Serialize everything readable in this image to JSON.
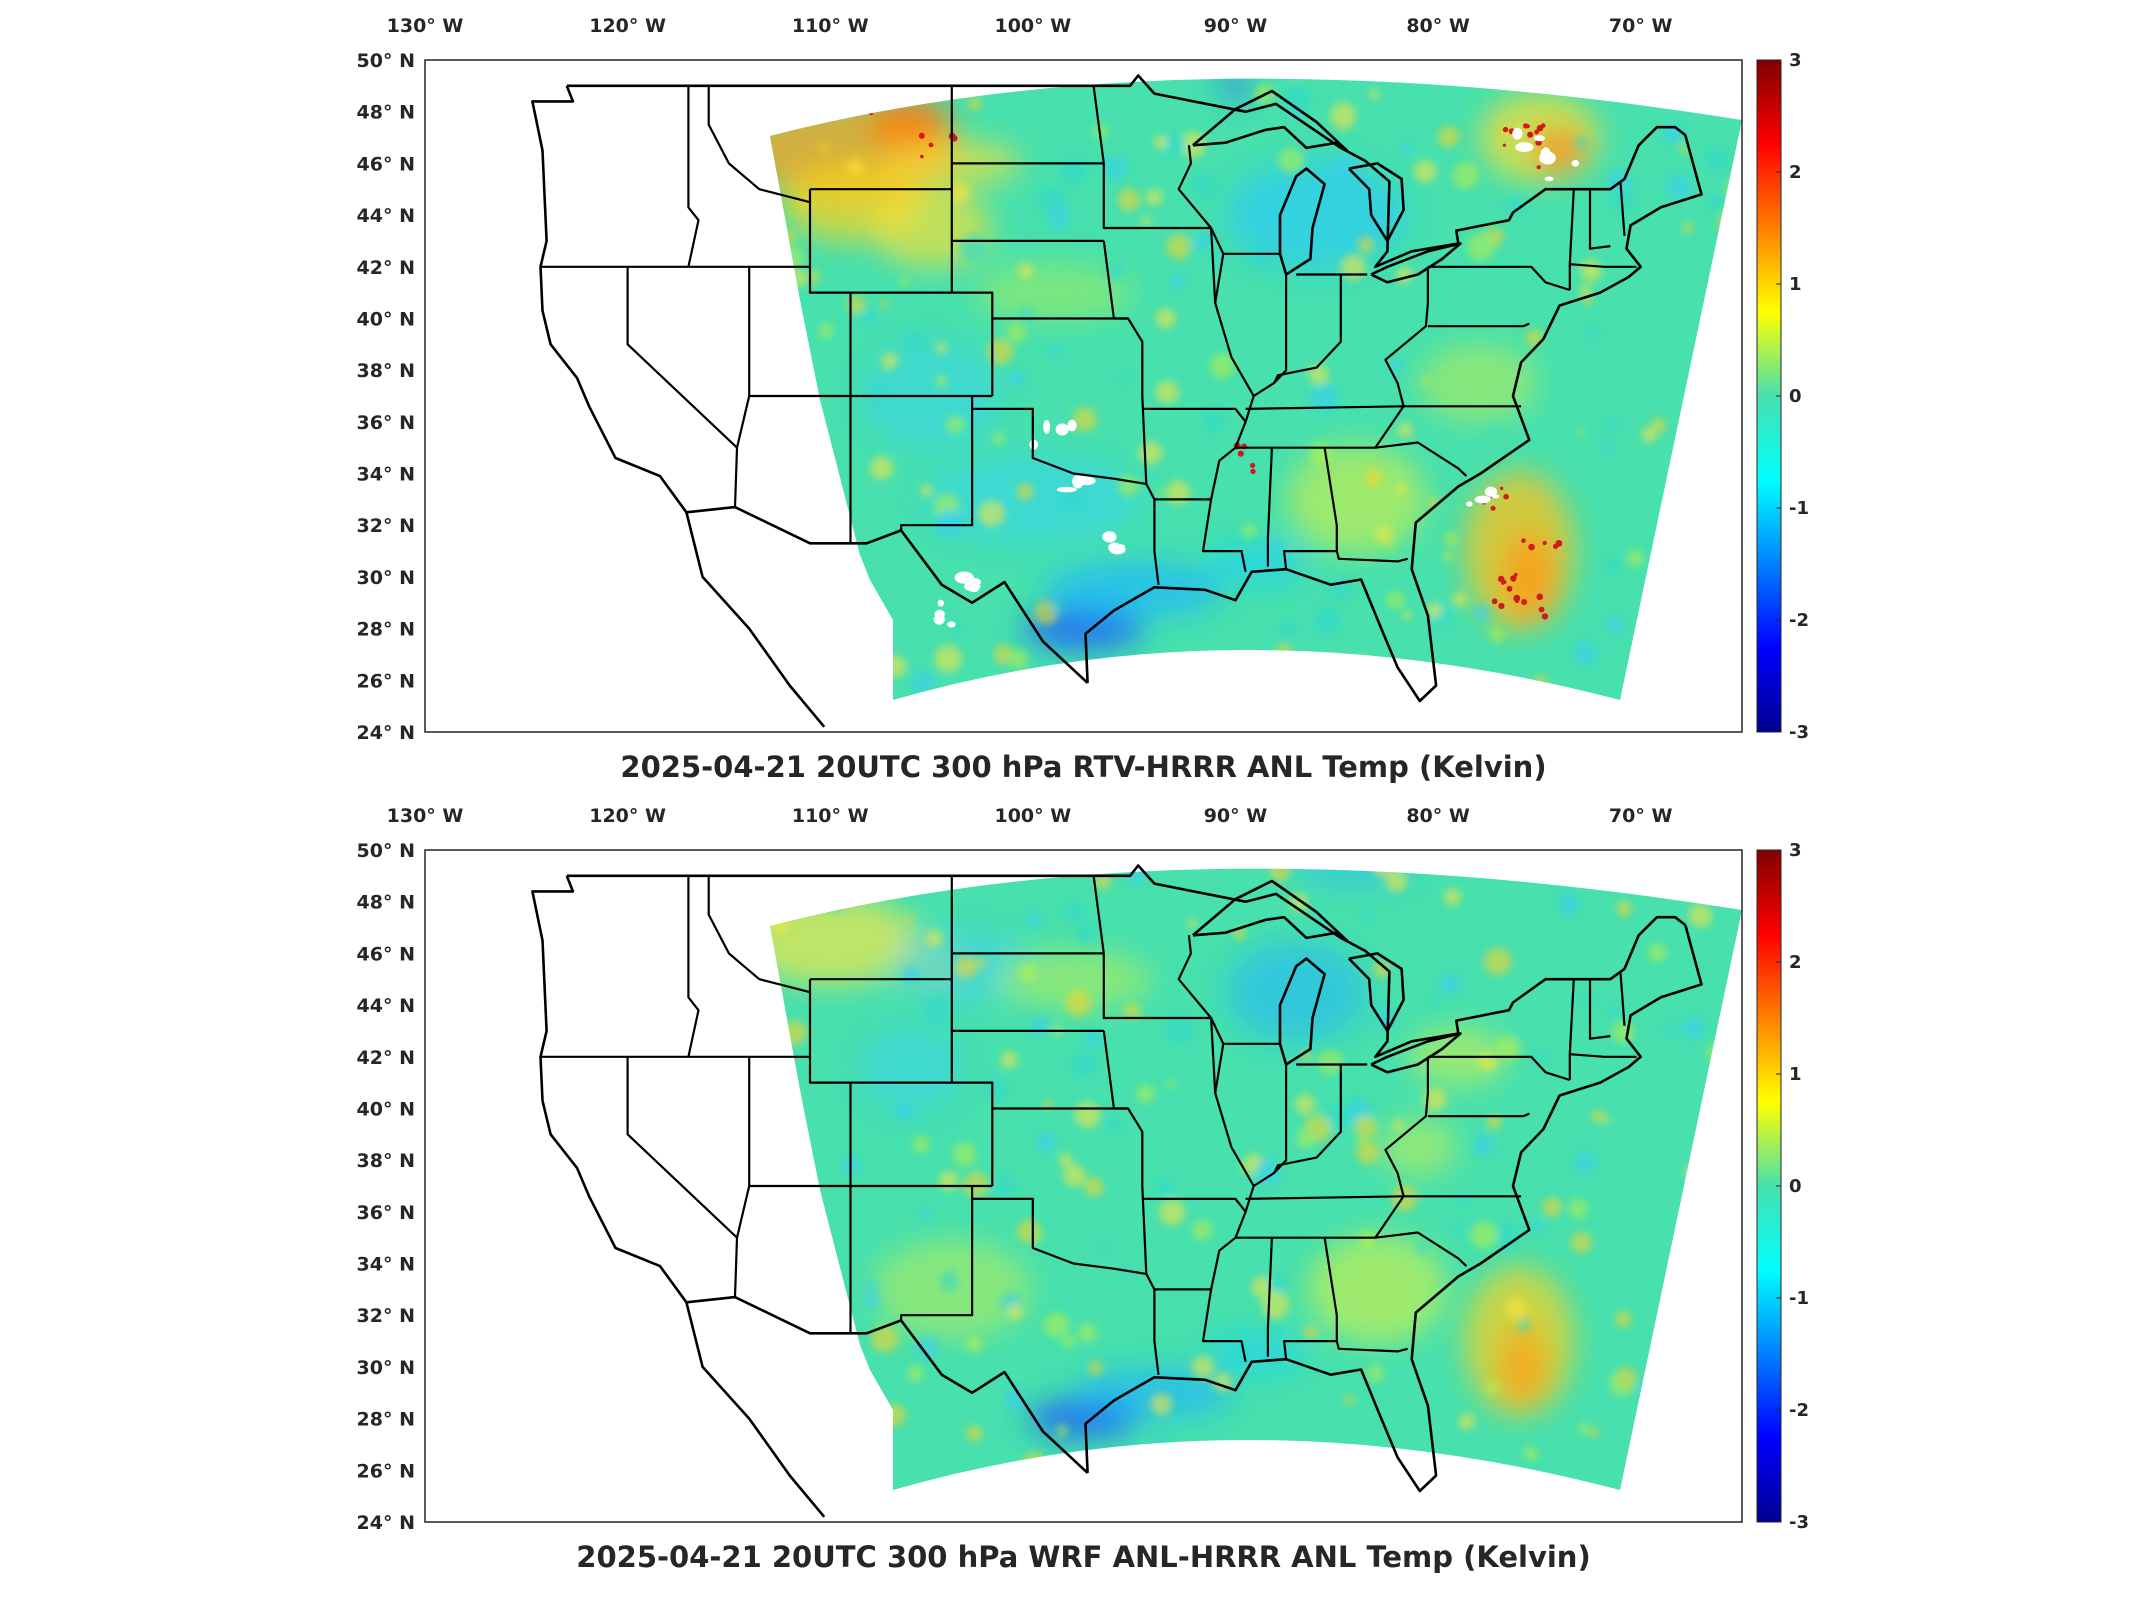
{
  "panels": [
    {
      "title": "2025-04-21 20UTC 300 hPa RTV-HRRR ANL Temp (Kelvin)"
    },
    {
      "title": "2025-04-21 20UTC 300 hPa WRF ANL-HRRR ANL Temp (Kelvin)"
    }
  ],
  "lon_ticks": [
    "130° W",
    "120° W",
    "110° W",
    "100° W",
    "90° W",
    "80° W",
    "70° W"
  ],
  "lat_ticks": [
    "50° N",
    "48° N",
    "46° N",
    "44° N",
    "42° N",
    "40° N",
    "38° N",
    "36° N",
    "34° N",
    "32° N",
    "30° N",
    "28° N",
    "26° N",
    "24° N"
  ],
  "colorbar": {
    "min": -3,
    "max": 3,
    "ticks": [
      "3",
      "2",
      "1",
      "0",
      "-1",
      "-2",
      "-3"
    ],
    "colormap": "jet"
  },
  "map": {
    "projection": "lat-lon",
    "lon_range": [
      -130,
      -65
    ],
    "lat_range": [
      24,
      50
    ],
    "colors": {
      "background": "#47e0ae",
      "frame": "#262626",
      "borders": "#000000"
    }
  }
}
